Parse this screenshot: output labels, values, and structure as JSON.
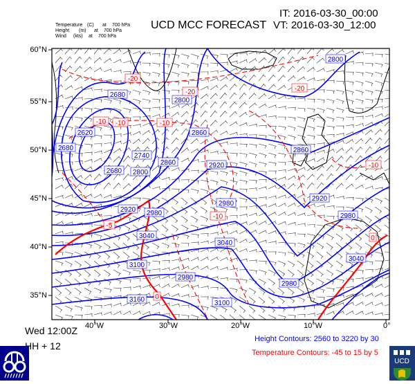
{
  "header": {
    "title": "UCD MCC FORECAST",
    "initial_time": "IT: 2016-03-30_00:00",
    "valid_time": "VT: 2016-03-30_12:00",
    "fields": [
      {
        "name": "Temperature",
        "unit": "(C)",
        "at": "at",
        "level": "700 hPa"
      },
      {
        "name": "Height",
        "unit": "(m)",
        "at": "at",
        "level": "700 hPa"
      },
      {
        "name": "Wind",
        "unit": "(kts)",
        "at": "at",
        "level": "700 hPa"
      }
    ]
  },
  "map": {
    "lat_labels": [
      "60°N",
      "55°N",
      "50°N",
      "45°N",
      "40°N",
      "35°N"
    ],
    "lon_labels": [
      "40°W",
      "30°W",
      "20°W",
      "10°W",
      "0°"
    ],
    "height_labels": [
      "2800",
      "2680",
      "2800",
      "2620",
      "2680",
      "2860",
      "2740",
      "2860",
      "2680",
      "2800",
      "2920",
      "2860",
      "2920",
      "2980",
      "2980",
      "3040",
      "3100",
      "3160",
      "2980",
      "3040",
      "2920",
      "2980",
      "3040",
      "2980",
      "3100"
    ],
    "temperature_labels": [
      "-20",
      "-20",
      "-20",
      "-10",
      "-10",
      "-10",
      "-10",
      "-5",
      "0",
      "-10",
      "0"
    ],
    "colors": {
      "height": "#0000ff",
      "temperature": "#ff0000",
      "wind": "#000000",
      "logo_bg": "#00008b",
      "ucd_bg": "#1a3a7a"
    }
  },
  "footer": {
    "day_time": "Wed 12:00Z",
    "forecast_hour": "HH + 12",
    "height_contours": "Height Contours: 2560 to 3220 by 30",
    "temperature_contours": "Temperature Contours: -45 to 15 by 5"
  },
  "logos": {
    "left": "MCC",
    "right": "UCD DUBLIN"
  }
}
